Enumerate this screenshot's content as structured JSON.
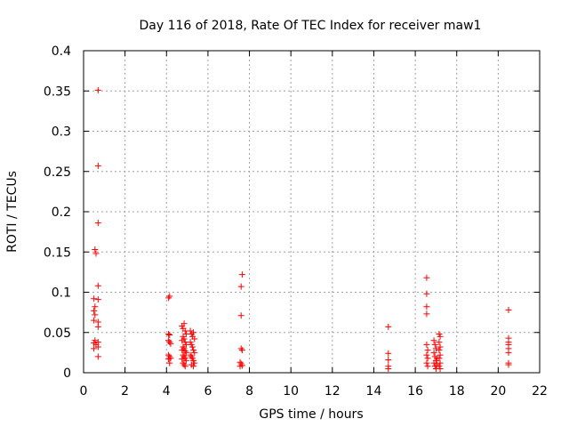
{
  "chart_data": {
    "type": "scatter",
    "title": "Day 116 of 2018, Rate Of TEC Index for receiver maw1",
    "xlabel": "GPS time / hours",
    "ylabel": "ROTI / TECUs",
    "xlim": [
      0,
      22
    ],
    "ylim": [
      0,
      0.4
    ],
    "x_ticks": [
      0,
      2,
      4,
      6,
      8,
      10,
      12,
      14,
      16,
      18,
      20,
      22
    ],
    "x_tick_labels": [
      "0",
      "2",
      "4",
      "6",
      "8",
      "10",
      "12",
      "14",
      "16",
      "18",
      "20",
      "22"
    ],
    "y_ticks": [
      0,
      0.05,
      0.1,
      0.15,
      0.2,
      0.25,
      0.3,
      0.35,
      0.4
    ],
    "y_tick_labels": [
      "0",
      "0.05",
      "0.1",
      "0.15",
      "0.2",
      "0.25",
      "0.3",
      "0.35",
      "0.4"
    ],
    "grid": true,
    "marker": "+",
    "marker_color": "#ff0000",
    "series": [
      {
        "name": "maw1",
        "points": [
          [
            0.5,
            0.092
          ],
          [
            0.55,
            0.082
          ],
          [
            0.5,
            0.077
          ],
          [
            0.55,
            0.072
          ],
          [
            0.5,
            0.065
          ],
          [
            0.6,
            0.148
          ],
          [
            0.55,
            0.153
          ],
          [
            0.55,
            0.04
          ],
          [
            0.5,
            0.037
          ],
          [
            0.6,
            0.035
          ],
          [
            0.5,
            0.03
          ],
          [
            0.7,
            0.351
          ],
          [
            0.7,
            0.257
          ],
          [
            0.7,
            0.186
          ],
          [
            0.7,
            0.108
          ],
          [
            0.7,
            0.091
          ],
          [
            0.7,
            0.063
          ],
          [
            0.7,
            0.057
          ],
          [
            0.7,
            0.038
          ],
          [
            0.7,
            0.032
          ],
          [
            0.7,
            0.02
          ],
          [
            4.15,
            0.095
          ],
          [
            4.1,
            0.093
          ],
          [
            4.1,
            0.048
          ],
          [
            4.15,
            0.047
          ],
          [
            4.1,
            0.04
          ],
          [
            4.15,
            0.038
          ],
          [
            4.2,
            0.036
          ],
          [
            4.1,
            0.022
          ],
          [
            4.15,
            0.02
          ],
          [
            4.2,
            0.018
          ],
          [
            4.1,
            0.017
          ],
          [
            4.15,
            0.012
          ],
          [
            4.75,
            0.058
          ],
          [
            4.8,
            0.055
          ],
          [
            4.85,
            0.061
          ],
          [
            4.9,
            0.052
          ],
          [
            4.95,
            0.048
          ],
          [
            4.8,
            0.045
          ],
          [
            4.85,
            0.042
          ],
          [
            4.9,
            0.038
          ],
          [
            4.95,
            0.035
          ],
          [
            4.8,
            0.032
          ],
          [
            4.85,
            0.03
          ],
          [
            4.9,
            0.027
          ],
          [
            4.95,
            0.025
          ],
          [
            4.8,
            0.022
          ],
          [
            4.85,
            0.02
          ],
          [
            4.9,
            0.018
          ],
          [
            4.95,
            0.015
          ],
          [
            4.8,
            0.012
          ],
          [
            4.85,
            0.01
          ],
          [
            4.9,
            0.008
          ],
          [
            4.75,
            0.04
          ],
          [
            4.75,
            0.028
          ],
          [
            4.75,
            0.017
          ],
          [
            5.15,
            0.052
          ],
          [
            5.2,
            0.048
          ],
          [
            5.25,
            0.045
          ],
          [
            5.3,
            0.05
          ],
          [
            5.35,
            0.042
          ],
          [
            5.15,
            0.038
          ],
          [
            5.2,
            0.035
          ],
          [
            5.25,
            0.032
          ],
          [
            5.3,
            0.028
          ],
          [
            5.35,
            0.025
          ],
          [
            5.15,
            0.022
          ],
          [
            5.2,
            0.02
          ],
          [
            5.25,
            0.018
          ],
          [
            5.3,
            0.015
          ],
          [
            5.35,
            0.012
          ],
          [
            5.2,
            0.01
          ],
          [
            5.3,
            0.008
          ],
          [
            7.65,
            0.122
          ],
          [
            7.6,
            0.107
          ],
          [
            7.6,
            0.071
          ],
          [
            7.6,
            0.03
          ],
          [
            7.65,
            0.028
          ],
          [
            7.55,
            0.013
          ],
          [
            7.6,
            0.011
          ],
          [
            7.65,
            0.009
          ],
          [
            7.55,
            0.008
          ],
          [
            14.7,
            0.057
          ],
          [
            14.7,
            0.024
          ],
          [
            14.7,
            0.016
          ],
          [
            14.7,
            0.008
          ],
          [
            14.7,
            0.005
          ],
          [
            16.55,
            0.118
          ],
          [
            16.55,
            0.098
          ],
          [
            16.55,
            0.082
          ],
          [
            16.55,
            0.073
          ],
          [
            16.55,
            0.035
          ],
          [
            16.6,
            0.028
          ],
          [
            16.55,
            0.022
          ],
          [
            16.6,
            0.018
          ],
          [
            16.55,
            0.012
          ],
          [
            16.6,
            0.008
          ],
          [
            16.9,
            0.04
          ],
          [
            16.95,
            0.035
          ],
          [
            17.0,
            0.03
          ],
          [
            16.9,
            0.025
          ],
          [
            16.95,
            0.02
          ],
          [
            17.0,
            0.015
          ],
          [
            16.9,
            0.012
          ],
          [
            16.95,
            0.008
          ],
          [
            17.0,
            0.005
          ],
          [
            17.05,
            0.018
          ],
          [
            17.05,
            0.01
          ],
          [
            17.15,
            0.048
          ],
          [
            17.2,
            0.045
          ],
          [
            17.15,
            0.038
          ],
          [
            17.2,
            0.032
          ],
          [
            17.15,
            0.028
          ],
          [
            17.2,
            0.022
          ],
          [
            17.15,
            0.018
          ],
          [
            17.2,
            0.012
          ],
          [
            17.15,
            0.008
          ],
          [
            17.2,
            0.005
          ],
          [
            20.5,
            0.078
          ],
          [
            20.5,
            0.043
          ],
          [
            20.5,
            0.038
          ],
          [
            20.5,
            0.035
          ],
          [
            20.5,
            0.03
          ],
          [
            20.5,
            0.025
          ],
          [
            20.5,
            0.012
          ],
          [
            20.5,
            0.01
          ]
        ]
      }
    ]
  }
}
